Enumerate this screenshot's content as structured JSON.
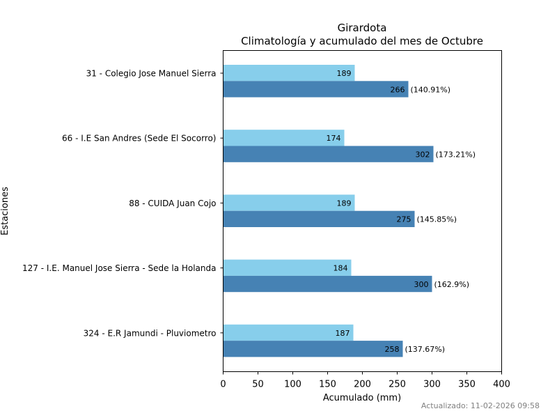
{
  "chart_data": {
    "type": "bar",
    "orientation": "horizontal",
    "title": "Girardota",
    "subtitle": "Climatología y acumulado del mes de Octubre",
    "xlabel": "Acumulado (mm)",
    "ylabel": "Estaciones",
    "xlim": [
      0,
      400
    ],
    "xticks": [
      0,
      50,
      100,
      150,
      200,
      250,
      300,
      350,
      400
    ],
    "grid": false,
    "categories": [
      "31 - Colegio Jose Manuel Sierra",
      "66 - I.E San Andres (Sede El Socorro)",
      "88 - CUIDA Juan Cojo",
      "127 - I.E. Manuel Jose Sierra - Sede la Holanda",
      "324 - E.R Jamundi - Pluviometro"
    ],
    "series": [
      {
        "name": "Climatología",
        "color": "#87CEEB",
        "values": [
          189,
          174,
          189,
          184,
          187
        ]
      },
      {
        "name": "Acumulado",
        "color": "#4682B4",
        "values": [
          266,
          302,
          275,
          300,
          258
        ],
        "percent_labels": [
          "(140.91%)",
          "(173.21%)",
          "(145.85%)",
          "(162.9%)",
          "(137.67%)"
        ]
      }
    ],
    "footer": "Actualizado: 11-02-2026 09:58"
  }
}
